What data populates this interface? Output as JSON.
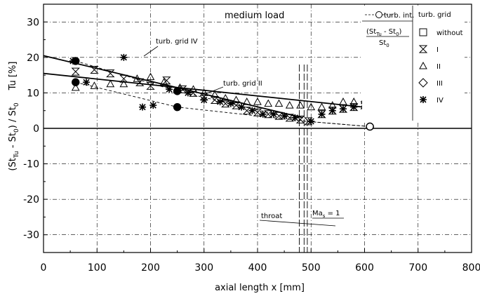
{
  "chart_data": {
    "type": "scatter",
    "title": "medium load",
    "xlabel": "axial length x [mm]",
    "ylabel_top": "Tu [%]",
    "ylabel_bottom_main": "(St",
    "ylabel_bottom_sub": "Tu",
    "ylabel_bottom_rest": " - St",
    "ylabel_bottom_sub0": "0",
    "ylabel_bottom_end": ") / St",
    "ylabel_bottom_sub1": "0",
    "xlim": [
      0,
      800
    ],
    "ylim": [
      -35,
      35
    ],
    "x_ticks": [
      0,
      100,
      200,
      300,
      400,
      500,
      600,
      700,
      800
    ],
    "y_ticks": [
      30,
      20,
      10,
      0,
      -10,
      -20,
      -30
    ],
    "grid": true,
    "legend_position": "top-right",
    "legend": {
      "turb_int_label": "turb. int.",
      "grid_header": "turb. grid",
      "st_label_num": "(St",
      "st_label_sub": "Tu",
      "st_label_mid": " - St",
      "st_label_sub0": "0",
      "st_label_close": ")",
      "st_label_den": "St",
      "st_label_den_sub": "0",
      "entries": [
        {
          "name": "without",
          "marker": "square"
        },
        {
          "name": "I",
          "marker": "hourglass"
        },
        {
          "name": "II",
          "marker": "triangle"
        },
        {
          "name": "III",
          "marker": "diamond"
        },
        {
          "name": "IV",
          "marker": "star"
        }
      ]
    },
    "annotations": {
      "grid_iv": "turb. grid IV",
      "grid_ii": "turb. grid II",
      "throat": "throat",
      "ma_main": "Ma",
      "ma_sub": "s",
      "ma_rest": " = 1"
    },
    "throat_lines_x": [
      478,
      487,
      493
    ],
    "turb_int": {
      "grid_iv": [
        [
          60,
          19
        ],
        [
          250,
          10.5
        ],
        [
          610,
          0.5
        ]
      ],
      "grid_ii": [
        [
          60,
          13
        ],
        [
          250,
          6
        ],
        [
          610,
          0.5
        ]
      ]
    },
    "fit_lines": {
      "grid_iv": [
        [
          0,
          20.5
        ],
        [
          485,
          3
        ]
      ],
      "grid_ii": [
        [
          0,
          15.5
        ],
        [
          610,
          5.8
        ]
      ]
    },
    "dashed_lines": {
      "grid_iv": [
        [
          60,
          19
        ],
        [
          250,
          10.5
        ],
        [
          490,
          2
        ],
        [
          610,
          0.5
        ]
      ],
      "grid_ii": [
        [
          60,
          13
        ],
        [
          250,
          6
        ],
        [
          490,
          2
        ],
        [
          610,
          0.5
        ]
      ]
    },
    "series": [
      {
        "name": "I",
        "marker": "hourglass",
        "points": [
          [
            60,
            16
          ],
          [
            95,
            16.5
          ],
          [
            125,
            15.5
          ],
          [
            150,
            14
          ],
          [
            180,
            13
          ],
          [
            200,
            12
          ],
          [
            230,
            13.5
          ],
          [
            260,
            11
          ],
          [
            280,
            10
          ],
          [
            300,
            9
          ],
          [
            320,
            8
          ],
          [
            340,
            7
          ],
          [
            360,
            6.5
          ],
          [
            380,
            5
          ],
          [
            400,
            4.5
          ],
          [
            420,
            4
          ],
          [
            440,
            3.5
          ],
          [
            460,
            3
          ],
          [
            480,
            2.5
          ],
          [
            495,
            2
          ],
          [
            520,
            4
          ],
          [
            540,
            5
          ],
          [
            560,
            5.5
          ],
          [
            580,
            6
          ],
          [
            600,
            6.5
          ]
        ]
      },
      {
        "name": "II",
        "marker": "triangle",
        "points": [
          [
            60,
            11.5
          ],
          [
            95,
            12
          ],
          [
            125,
            12.5
          ],
          [
            150,
            12.5
          ],
          [
            175,
            14
          ],
          [
            200,
            14.5
          ],
          [
            225,
            13
          ],
          [
            255,
            11.5
          ],
          [
            280,
            11
          ],
          [
            300,
            10
          ],
          [
            320,
            9.5
          ],
          [
            340,
            8.5
          ],
          [
            360,
            8
          ],
          [
            380,
            7.5
          ],
          [
            400,
            7.5
          ],
          [
            420,
            7
          ],
          [
            440,
            7
          ],
          [
            460,
            6.5
          ],
          [
            480,
            6.5
          ],
          [
            500,
            6
          ],
          [
            520,
            6
          ],
          [
            540,
            6.5
          ],
          [
            560,
            7.5
          ],
          [
            580,
            7.5
          ],
          [
            610,
            6
          ]
        ]
      },
      {
        "name": "IV",
        "marker": "star",
        "points": [
          [
            55,
            19
          ],
          [
            80,
            13
          ],
          [
            150,
            20
          ],
          [
            185,
            6
          ],
          [
            205,
            6.5
          ],
          [
            235,
            11
          ],
          [
            270,
            10
          ],
          [
            300,
            8
          ],
          [
            330,
            7.5
          ],
          [
            350,
            7
          ],
          [
            370,
            6
          ],
          [
            390,
            5
          ],
          [
            410,
            4
          ],
          [
            430,
            4
          ],
          [
            450,
            3.5
          ],
          [
            470,
            3
          ],
          [
            500,
            2
          ],
          [
            520,
            4
          ],
          [
            540,
            5
          ],
          [
            560,
            5.5
          ],
          [
            580,
            6
          ],
          [
            600,
            7
          ],
          [
            610,
            7.5
          ]
        ]
      }
    ]
  }
}
